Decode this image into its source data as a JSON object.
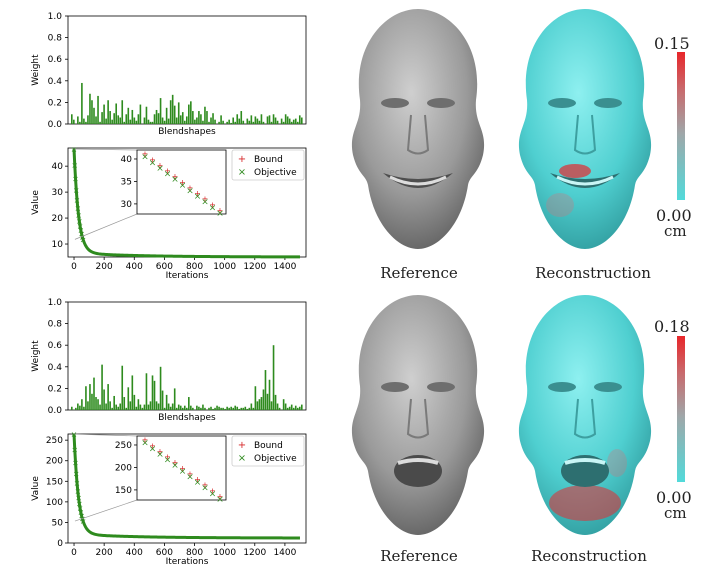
{
  "rows": [
    {
      "blend": {
        "ylabel": "Weight",
        "xlabel": "Blendshapes",
        "yticks": [
          "0.0",
          "0.2",
          "0.4",
          "0.6",
          "0.8",
          "1.0"
        ],
        "values": [
          0.09,
          0.04,
          0,
          0.07,
          0.02,
          0.38,
          0.05,
          0.02,
          0.08,
          0.28,
          0.22,
          0.15,
          0.07,
          0.26,
          0.02,
          0.11,
          0.18,
          0.05,
          0.22,
          0.12,
          0.04,
          0.1,
          0.19,
          0.08,
          0.06,
          0.22,
          0.02,
          0.09,
          0.15,
          0.04,
          0.13,
          0.06,
          0.03,
          0.09,
          0.18,
          0,
          0.06,
          0.16,
          0.04,
          0.02,
          0.02,
          0.09,
          0.13,
          0.1,
          0.24,
          0.06,
          0.03,
          0.15,
          0.05,
          0.22,
          0.27,
          0.17,
          0.06,
          0.2,
          0.08,
          0.11,
          0.03,
          0.07,
          0.18,
          0.21,
          0.12,
          0.04,
          0.06,
          0.12,
          0.09,
          0.03,
          0.16,
          0.12,
          0.02,
          0.06,
          0.1,
          0.04,
          0,
          0.02,
          0.08,
          0.03,
          0,
          0.02,
          0.04,
          0.01,
          0.06,
          0.02,
          0.09,
          0.05,
          0.12,
          0.03,
          0,
          0.05,
          0.03,
          0.08,
          0.02,
          0.07,
          0.05,
          0.03,
          0.09,
          0.02,
          0,
          0.07,
          0.08,
          0.02,
          0.09,
          0.06,
          0.03,
          0,
          0.05,
          0.02,
          0.09,
          0.07,
          0.05,
          0.02,
          0.04,
          0.05,
          0.02,
          0.08,
          0.06
        ]
      },
      "conv": {
        "ylabel": "Value",
        "xlabel": "Iterations",
        "yticks": [
          "10",
          "20",
          "30",
          "40"
        ],
        "xticks": [
          "0",
          "200",
          "400",
          "600",
          "800",
          "1000",
          "1200",
          "1400"
        ],
        "inset_yticks": [
          "30",
          "35",
          "40"
        ],
        "legend": [
          "Bound",
          "Objective"
        ],
        "start": 45,
        "floor": 5,
        "ymin": 5,
        "ymax": 47
      },
      "faces": {
        "left": "Reference",
        "right": "Reconstruction",
        "scale_max": "0.15",
        "scale_min": "0.00",
        "unit": "cm"
      }
    },
    {
      "blend": {
        "ylabel": "Weight",
        "xlabel": "Blendshapes",
        "yticks": [
          "0.0",
          "0.2",
          "0.4",
          "0.6",
          "0.8",
          "1.0"
        ],
        "values": [
          0.03,
          0,
          0.02,
          0.06,
          0.04,
          0.1,
          0.03,
          0.22,
          0.08,
          0.24,
          0.15,
          0.3,
          0.12,
          0.1,
          0.05,
          0.42,
          0.19,
          0.06,
          0.24,
          0.08,
          0.02,
          0.13,
          0.05,
          0.03,
          0.06,
          0.41,
          0.12,
          0.02,
          0.21,
          0.08,
          0.32,
          0.14,
          0.03,
          0.1,
          0.05,
          0.02,
          0.05,
          0.34,
          0.05,
          0.08,
          0.32,
          0.27,
          0.08,
          0.06,
          0.4,
          0.18,
          0.02,
          0.14,
          0.06,
          0.03,
          0.06,
          0.2,
          0.02,
          0.05,
          0.04,
          0.02,
          0.04,
          0.02,
          0.12,
          0.04,
          0.02,
          0,
          0.04,
          0.03,
          0.02,
          0.05,
          0.02,
          0,
          0.02,
          0.03,
          0.01,
          0.02,
          0.04,
          0.03,
          0.02,
          0.02,
          0.01,
          0.03,
          0.02,
          0.03,
          0.02,
          0.04,
          0.03,
          0.01,
          0.02,
          0.02,
          0.03,
          0.01,
          0.02,
          0.06,
          0.02,
          0.22,
          0.08,
          0.1,
          0.12,
          0.19,
          0.37,
          0.15,
          0.28,
          0.08,
          0.6,
          0.14,
          0.06,
          0.02,
          0,
          0.1,
          0.06,
          0.02,
          0.03,
          0.05,
          0.02,
          0.04,
          0.02,
          0.03,
          0.05
        ]
      },
      "conv": {
        "ylabel": "Value",
        "xlabel": "Iterations",
        "yticks": [
          "0",
          "50",
          "100",
          "150",
          "200",
          "250"
        ],
        "xticks": [
          "0",
          "200",
          "400",
          "600",
          "800",
          "1000",
          "1200",
          "1400"
        ],
        "inset_yticks": [
          "150",
          "200",
          "250"
        ],
        "legend": [
          "Bound",
          "Objective"
        ],
        "start": 255,
        "floor": 12,
        "ymin": 0,
        "ymax": 265
      },
      "faces": {
        "left": "Reference",
        "right": "Reconstruction",
        "scale_max": "0.18",
        "scale_min": "0.00",
        "unit": "cm"
      }
    }
  ]
}
